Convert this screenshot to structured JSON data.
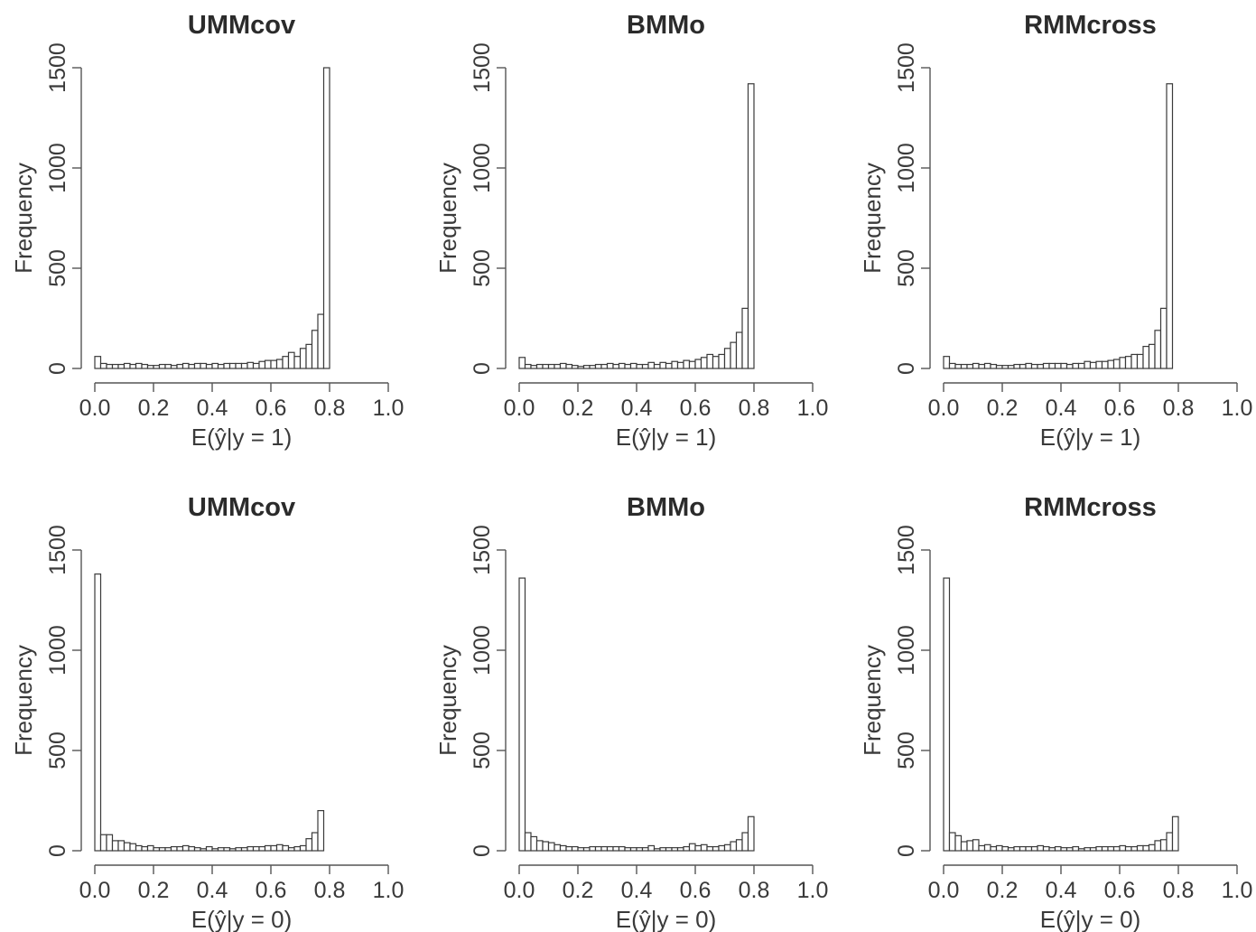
{
  "chart_data": [
    {
      "type": "bar",
      "title": "UMMcov",
      "xlabel": "E(ŷ|y = 1)",
      "ylabel": "Frequency",
      "xlim": [
        0,
        1
      ],
      "ylim": [
        0,
        1500
      ],
      "xticks": [
        "0.0",
        "0.2",
        "0.4",
        "0.6",
        "0.8",
        "1.0"
      ],
      "yticks": [
        "0",
        "500",
        "1000",
        "1500"
      ],
      "bin_width": 0.02,
      "values": [
        60,
        25,
        20,
        20,
        20,
        25,
        20,
        25,
        20,
        15,
        15,
        20,
        20,
        15,
        20,
        25,
        20,
        25,
        25,
        20,
        25,
        20,
        25,
        25,
        25,
        25,
        30,
        25,
        35,
        40,
        40,
        45,
        60,
        80,
        60,
        100,
        120,
        190,
        270,
        1500
      ]
    },
    {
      "type": "bar",
      "title": "BMMo",
      "xlabel": "E(ŷ|y = 1)",
      "ylabel": "Frequency",
      "xlim": [
        0,
        1
      ],
      "ylim": [
        0,
        1500
      ],
      "xticks": [
        "0.0",
        "0.2",
        "0.4",
        "0.6",
        "0.8",
        "1.0"
      ],
      "yticks": [
        "0",
        "500",
        "1000",
        "1500"
      ],
      "bin_width": 0.02,
      "values": [
        55,
        20,
        15,
        20,
        20,
        20,
        20,
        25,
        20,
        15,
        10,
        15,
        15,
        20,
        20,
        25,
        20,
        25,
        20,
        25,
        20,
        20,
        30,
        20,
        30,
        25,
        35,
        30,
        40,
        35,
        45,
        55,
        70,
        60,
        70,
        100,
        130,
        180,
        300,
        1420
      ]
    },
    {
      "type": "bar",
      "title": "RMMcross",
      "xlabel": "E(ŷ|y = 1)",
      "ylabel": "Frequency",
      "xlim": [
        0,
        1
      ],
      "ylim": [
        0,
        1500
      ],
      "xticks": [
        "0.0",
        "0.2",
        "0.4",
        "0.6",
        "0.8",
        "1.0"
      ],
      "yticks": [
        "0",
        "500",
        "1000",
        "1500"
      ],
      "bin_width": 0.02,
      "values": [
        60,
        25,
        20,
        20,
        20,
        25,
        20,
        25,
        20,
        15,
        15,
        15,
        20,
        20,
        25,
        20,
        20,
        25,
        25,
        25,
        25,
        20,
        25,
        25,
        35,
        30,
        35,
        35,
        40,
        45,
        55,
        60,
        70,
        70,
        110,
        120,
        190,
        300,
        1420,
        0
      ]
    },
    {
      "type": "bar",
      "title": "UMMcov",
      "xlabel": "E(ŷ|y = 0)",
      "ylabel": "Frequency",
      "xlim": [
        0,
        1
      ],
      "ylim": [
        0,
        1500
      ],
      "xticks": [
        "0.0",
        "0.2",
        "0.4",
        "0.6",
        "0.8",
        "1.0"
      ],
      "yticks": [
        "0",
        "500",
        "1000",
        "1500"
      ],
      "bin_width": 0.02,
      "values": [
        1380,
        80,
        80,
        50,
        50,
        40,
        35,
        25,
        20,
        25,
        15,
        15,
        15,
        20,
        20,
        25,
        20,
        15,
        10,
        20,
        10,
        15,
        15,
        10,
        15,
        15,
        20,
        20,
        20,
        25,
        25,
        30,
        25,
        15,
        20,
        25,
        60,
        90,
        200,
        0
      ]
    },
    {
      "type": "bar",
      "title": "BMMo",
      "xlabel": "E(ŷ|y = 0)",
      "ylabel": "Frequency",
      "xlim": [
        0,
        1
      ],
      "ylim": [
        0,
        1500
      ],
      "xticks": [
        "0.0",
        "0.2",
        "0.4",
        "0.6",
        "0.8",
        "1.0"
      ],
      "yticks": [
        "0",
        "500",
        "1000",
        "1500"
      ],
      "bin_width": 0.02,
      "values": [
        1360,
        90,
        70,
        50,
        45,
        40,
        30,
        25,
        20,
        20,
        15,
        15,
        20,
        20,
        20,
        20,
        20,
        20,
        15,
        15,
        15,
        15,
        25,
        10,
        15,
        15,
        15,
        15,
        20,
        35,
        25,
        30,
        20,
        20,
        25,
        30,
        45,
        55,
        90,
        170
      ]
    },
    {
      "type": "bar",
      "title": "RMMcross",
      "xlabel": "E(ŷ|y = 0)",
      "ylabel": "Frequency",
      "xlim": [
        0,
        1
      ],
      "ylim": [
        0,
        1500
      ],
      "xticks": [
        "0.0",
        "0.2",
        "0.4",
        "0.6",
        "0.8",
        "1.0"
      ],
      "yticks": [
        "0",
        "500",
        "1000",
        "1500"
      ],
      "bin_width": 0.02,
      "values": [
        1360,
        90,
        75,
        45,
        50,
        55,
        25,
        30,
        20,
        25,
        20,
        15,
        20,
        20,
        20,
        20,
        25,
        20,
        15,
        20,
        15,
        15,
        20,
        10,
        15,
        15,
        20,
        20,
        20,
        20,
        25,
        20,
        20,
        25,
        25,
        30,
        50,
        55,
        90,
        170
      ]
    }
  ]
}
